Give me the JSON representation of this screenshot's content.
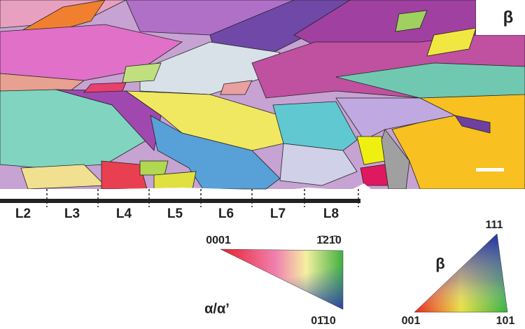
{
  "map": {
    "phase_label": "β"
  },
  "zones": [
    "L2",
    "L3",
    "L4",
    "L5",
    "L6",
    "L7",
    "L8"
  ],
  "alpha_key": {
    "top_left": "0001",
    "top_right": "1̄21̄0",
    "bottom": "01̄10",
    "phase": "α/α’"
  },
  "beta_key": {
    "phase": "β",
    "top": "111",
    "bottom_left": "001",
    "bottom_right": "101"
  }
}
